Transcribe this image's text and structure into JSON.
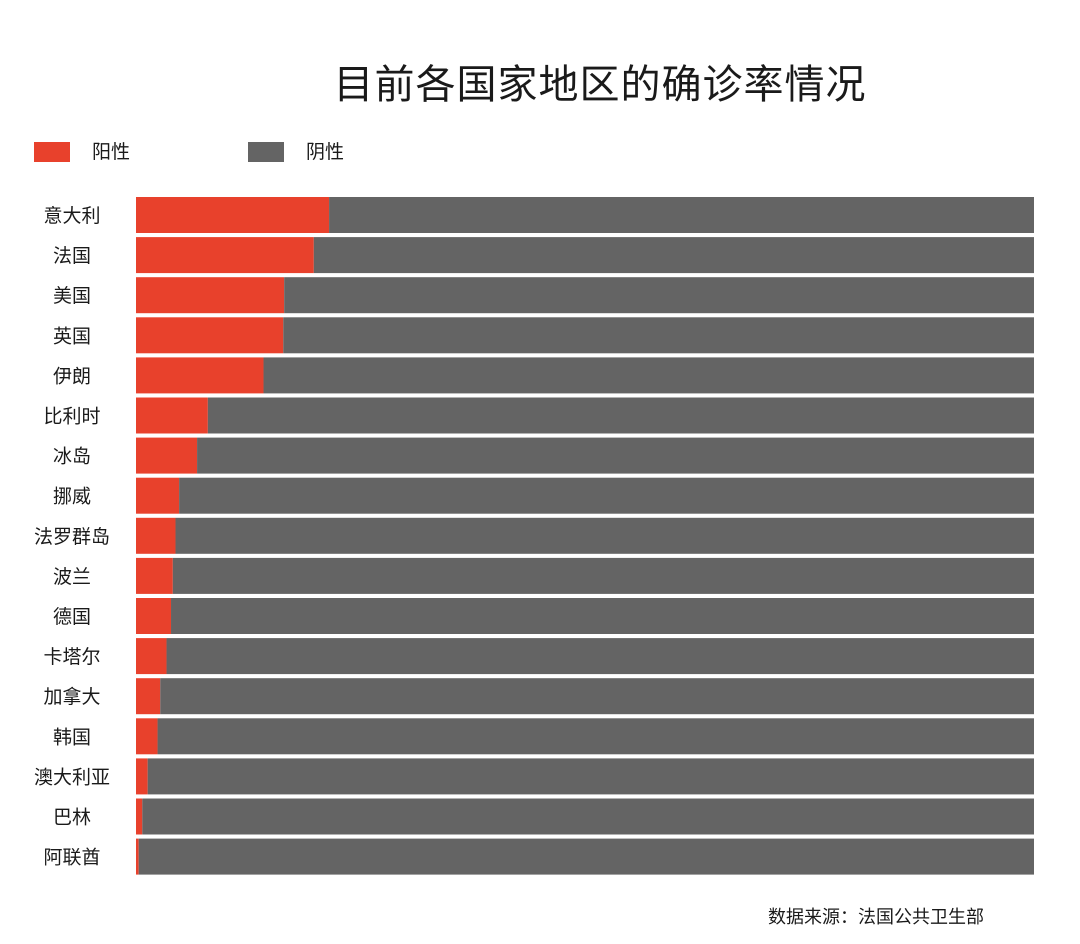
{
  "chart_data": {
    "type": "bar",
    "stacked": true,
    "orientation": "horizontal",
    "title": "目前各国家地区的确诊率情况",
    "categories": [
      "意大利",
      "法国",
      "美国",
      "英国",
      "伊朗",
      "比利时",
      "冰岛",
      "挪威",
      "法罗群岛",
      "波兰",
      "德国",
      "卡塔尔",
      "加拿大",
      "韩国",
      "澳大利亚",
      "巴林",
      "阿联酋"
    ],
    "series": [
      {
        "name": "阳性",
        "color": "#e8412c",
        "values": [
          21.5,
          19.8,
          16.5,
          16.4,
          14.2,
          8.0,
          6.8,
          4.8,
          4.4,
          4.1,
          3.9,
          3.4,
          2.7,
          2.4,
          1.3,
          0.7,
          0.3
        ]
      },
      {
        "name": "阴性",
        "color": "#646464",
        "values": [
          78.5,
          80.2,
          83.5,
          83.6,
          85.8,
          92.0,
          93.2,
          95.2,
          95.6,
          95.9,
          96.1,
          96.6,
          97.3,
          97.6,
          98.7,
          99.3,
          99.7
        ]
      }
    ],
    "xlim": [
      0,
      100
    ],
    "legend_position": "top-left",
    "grid": false
  },
  "legend": {
    "positive_label": "阳性",
    "negative_label": "阴性",
    "positive_color": "#e8412c",
    "negative_color": "#646464"
  },
  "source": "数据来源：法国公共卫生部"
}
